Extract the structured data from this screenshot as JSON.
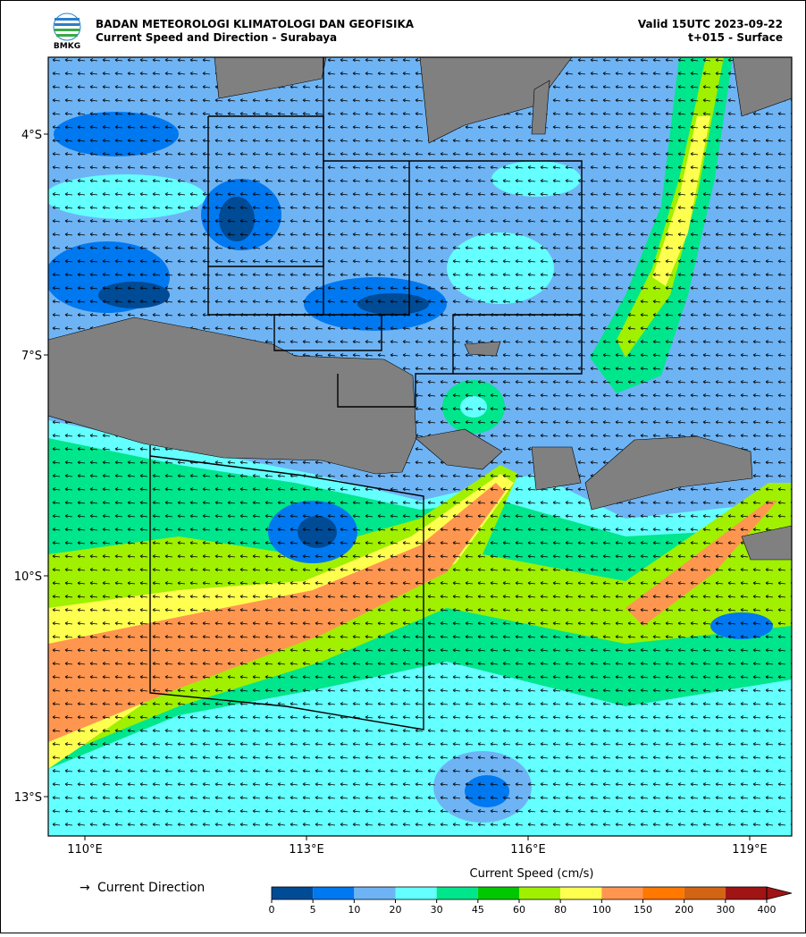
{
  "header": {
    "logo_text": "BMKG",
    "agency": "BADAN METEOROLOGI KLIMATOLOGI DAN GEOFISIKA",
    "subtitle": "Current Speed and Direction - Surabaya",
    "valid": "Valid 15UTC 2023-09-22",
    "lead": "t+015 - Surface"
  },
  "map": {
    "x_labels": [
      "110°E",
      "113°E",
      "116°E",
      "119°E"
    ],
    "y_labels": [
      "4°S",
      "7°S",
      "10°S",
      "13°S"
    ]
  },
  "legend": {
    "arrow": "→",
    "label": "Current Direction"
  },
  "colorbar": {
    "title": "Current Speed (cm/s)",
    "levels": [
      0,
      5,
      10,
      20,
      30,
      45,
      60,
      80,
      100,
      150,
      200,
      300,
      400
    ],
    "colors": [
      "#004b96",
      "#0078f0",
      "#6eb4f5",
      "#64ffff",
      "#00e68c",
      "#00c800",
      "#a0f000",
      "#ffff50",
      "#ff9650",
      "#ff7800",
      "#d26414",
      "#a01414"
    ]
  }
}
